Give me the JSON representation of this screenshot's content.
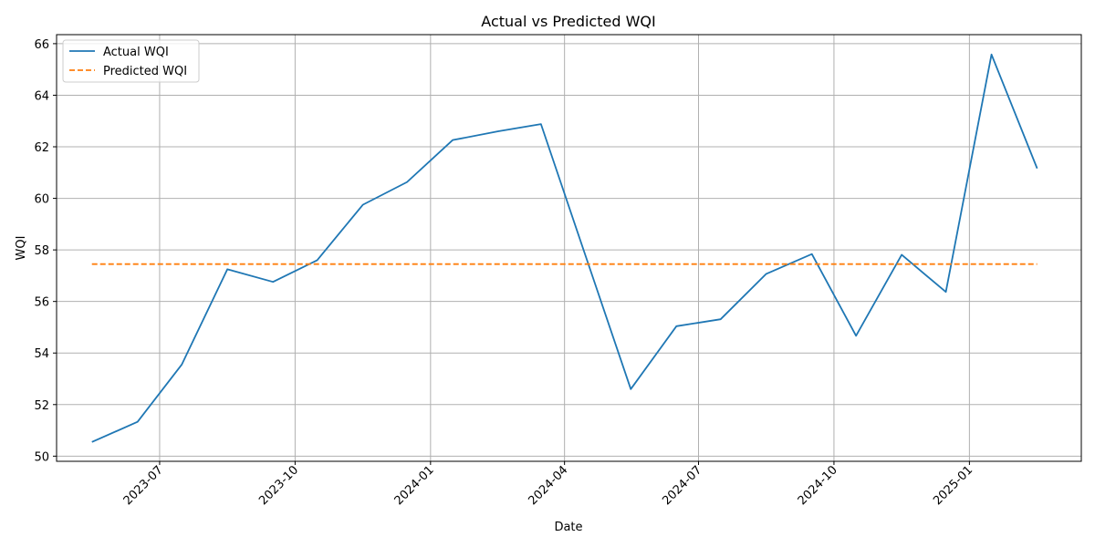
{
  "chart_data": {
    "type": "line",
    "title": "Actual vs Predicted WQI",
    "xlabel": "Date",
    "ylabel": "WQI",
    "xlim": [
      "2023-04-22",
      "2025-03-18"
    ],
    "ylim": [
      49.8,
      66.35
    ],
    "x_ticks": [
      "2023-07",
      "2023-10",
      "2024-01",
      "2024-04",
      "2024-07",
      "2024-10",
      "2025-01"
    ],
    "y_ticks": [
      50,
      52,
      54,
      56,
      58,
      60,
      62,
      64,
      66
    ],
    "grid": true,
    "legend_position": "top-left",
    "colors": {
      "actual": "#1f77b4",
      "predicted": "#ff7f0e",
      "grid": "#b0b0b0",
      "axis": "#000000"
    },
    "x": [
      "2023-05-16",
      "2023-06-16",
      "2023-07-16",
      "2023-08-16",
      "2023-09-16",
      "2023-10-16",
      "2023-11-16",
      "2023-12-16",
      "2024-01-16",
      "2024-02-16",
      "2024-03-16",
      "2024-04-16",
      "2024-05-16",
      "2024-06-16",
      "2024-07-16",
      "2024-08-16",
      "2024-09-16",
      "2024-10-16",
      "2024-11-16",
      "2024-12-16",
      "2025-01-16",
      "2025-02-16"
    ],
    "series": [
      {
        "name": "Actual WQI",
        "style": "solid",
        "values": [
          50.55,
          51.33,
          53.55,
          57.25,
          56.76,
          57.6,
          59.75,
          60.63,
          62.26,
          62.6,
          62.88,
          57.65,
          52.6,
          55.04,
          55.31,
          57.07,
          57.84,
          54.67,
          57.81,
          56.37,
          65.58,
          61.16
        ]
      },
      {
        "name": "Predicted WQI",
        "style": "dashed",
        "values": [
          57.45,
          57.45,
          57.45,
          57.45,
          57.45,
          57.45,
          57.45,
          57.45,
          57.45,
          57.45,
          57.45,
          57.45,
          57.45,
          57.45,
          57.45,
          57.45,
          57.45,
          57.45,
          57.45,
          57.45,
          57.45,
          57.45
        ]
      }
    ]
  }
}
